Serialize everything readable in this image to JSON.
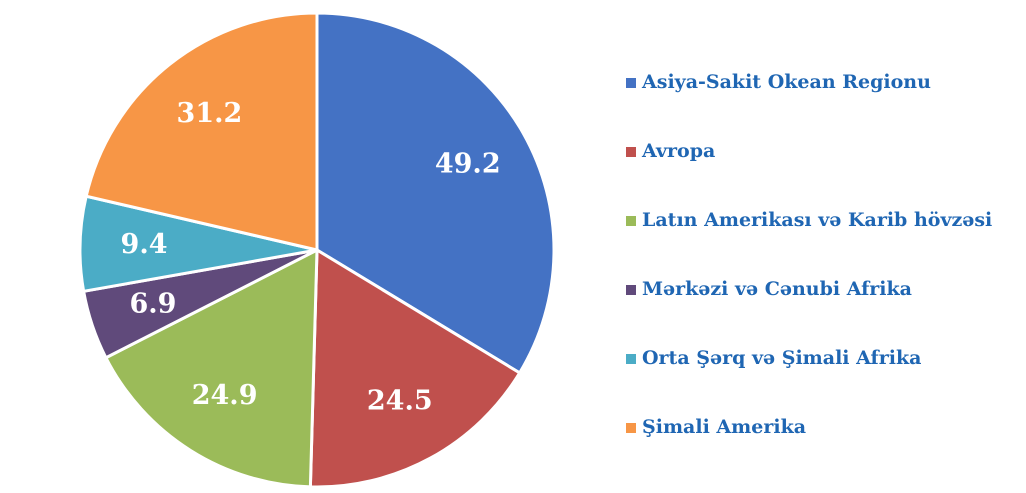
{
  "chart_data": {
    "type": "pie",
    "categories": [
      "Asiya-Sakit Okean Regionu",
      "Avropa",
      "Latın Amerikası və Karib hövzəsi",
      "Mərkəzi və Cənubi Afrika",
      "Orta Şərq və Şimali Afrika",
      "Şimali Amerika"
    ],
    "values": [
      49.2,
      24.5,
      24.9,
      6.9,
      9.4,
      31.2
    ],
    "colors": [
      "#4472c4",
      "#c0504d",
      "#9bbb59",
      "#604a7b",
      "#4bacc6",
      "#f79646"
    ],
    "legend": "right"
  }
}
